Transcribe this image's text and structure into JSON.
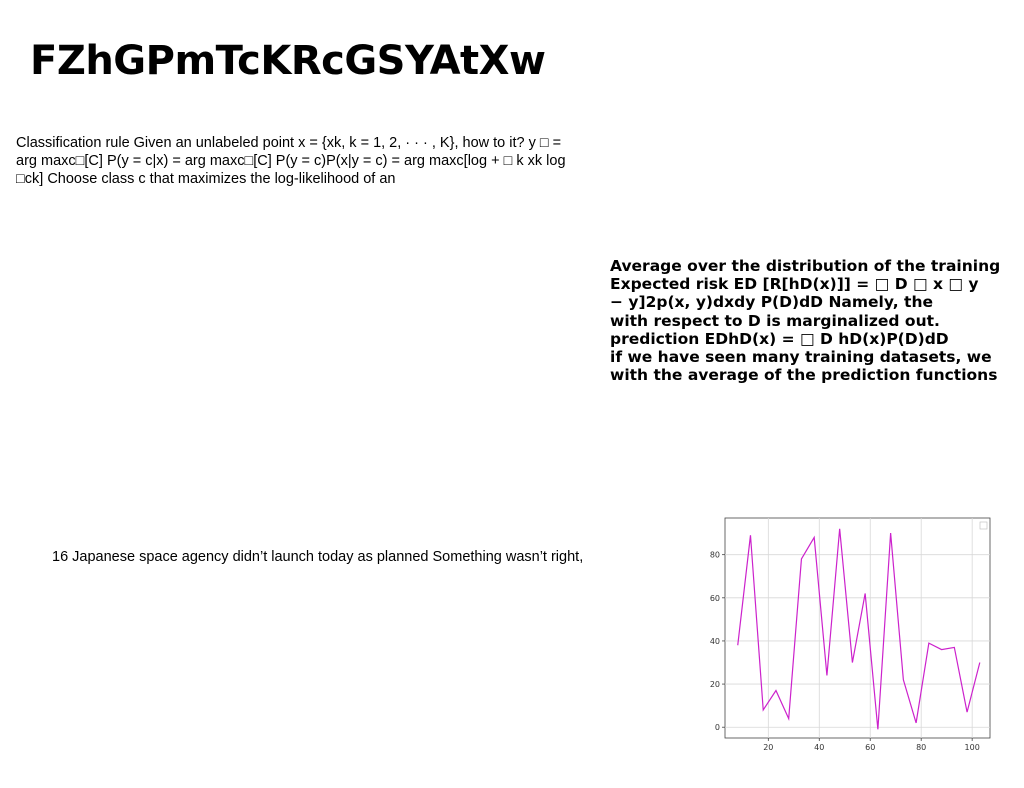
{
  "title": "FZhGPmTcKRcGSYAtXw",
  "left_paragraph": "Classification rule Given an unlabeled point x = {xk, k = 1, 2, · · · , K}, how to it? y □ = arg maxc□[C] P(y = c|x) = arg maxc□[C] P(y = c)P(x|y = c) = arg maxc[log + □ k xk log □ck] Choose class c that maximizes the log-likelihood of an",
  "right_paragraph": {
    "lines": [
      "Average over the distribution of the training",
      "Expected risk ED [R[hD(x)]] = □ D □ x □ y",
      "− y]2p(x, y)dxdy P(D)dD Namely, the",
      "with respect to D is marginalized out.",
      "prediction EDhD(x) = □ D hD(x)P(D)dD",
      "if we have seen many training datasets, we",
      "with the average of the prediction functions"
    ]
  },
  "middle_paragraph": "16 Japanese space agency didn’t launch today as planned Something wasn’t right,",
  "chart_data": {
    "type": "line",
    "x": [
      8,
      13,
      18,
      23,
      28,
      33,
      38,
      43,
      48,
      53,
      58,
      63,
      68,
      73,
      78,
      83,
      88,
      93,
      98,
      103
    ],
    "series": [
      {
        "values": [
          38,
          89,
          8,
          17,
          4,
          78,
          88,
          24,
          92,
          30,
          62,
          -1,
          90,
          22,
          2,
          39,
          36,
          37,
          7,
          30
        ],
        "color": "#cc22cc"
      }
    ],
    "xticks": [
      "20",
      "40",
      "60",
      "80",
      "100"
    ],
    "xtick_values": [
      20,
      40,
      60,
      80,
      100
    ],
    "yticks": [
      "0",
      "20",
      "40",
      "60",
      "80"
    ],
    "ytick_values": [
      0,
      20,
      40,
      60,
      80
    ],
    "xlim": [
      3,
      107
    ],
    "ylim": [
      -5,
      97
    ],
    "grid": true,
    "legend": "top-right",
    "title": "",
    "xlabel": "",
    "ylabel": ""
  }
}
